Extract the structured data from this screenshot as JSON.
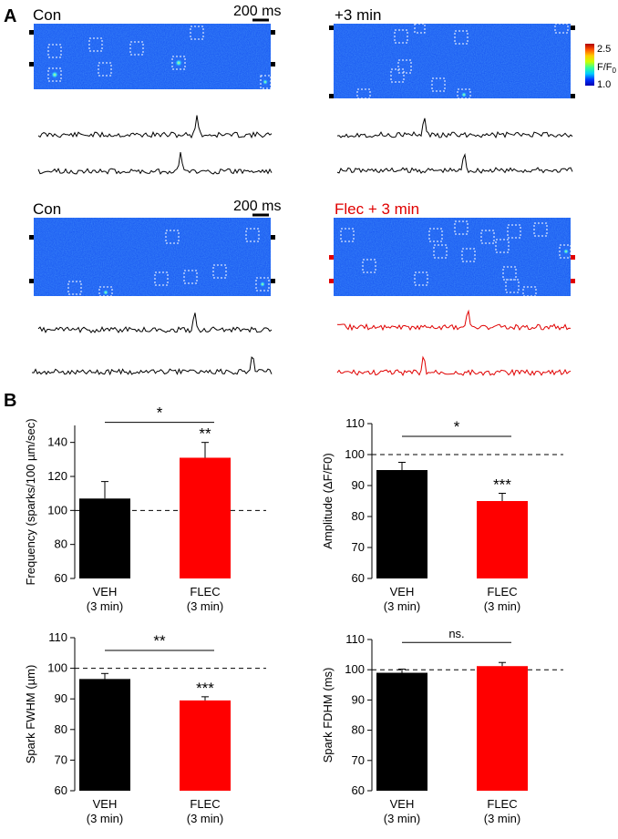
{
  "panel_a": {
    "label": "A",
    "scale_bar": "200 ms",
    "colorbar": {
      "max": "2.5",
      "min": "1.0",
      "unit_main": "F/F",
      "unit_sub": "0",
      "colors": [
        "#0000b0",
        "#0033ff",
        "#00ccff",
        "#33ff99",
        "#ccff00",
        "#ffcc00",
        "#ff5500",
        "#b00000"
      ]
    },
    "images": [
      {
        "title": "Con",
        "title_color": "#000000",
        "trace_color": "#000000"
      },
      {
        "title": "+3 min",
        "title_color": "#000000",
        "trace_color": "#000000"
      },
      {
        "title": "Con",
        "title_color": "#000000",
        "trace_color": "#000000"
      },
      {
        "title": "Flec + 3 min",
        "title_color": "#e00000",
        "trace_color": "#e00000"
      }
    ]
  },
  "panel_b": {
    "label": "B"
  },
  "chart_data": [
    {
      "type": "bar",
      "ylabel": "Frequency (sparks/100 µm/sec)",
      "ylim": [
        60,
        150
      ],
      "yticks": [
        "60",
        "80",
        "100",
        "120",
        "140"
      ],
      "ytick_values": [
        60,
        80,
        100,
        120,
        140
      ],
      "reference_line": 100,
      "categories": [
        {
          "name": "VEH",
          "sub": "(3 min)",
          "value": 107,
          "error": 10,
          "color": "#000000",
          "star": ""
        },
        {
          "name": "FLEC",
          "sub": "(3 min)",
          "value": 131,
          "error": 9,
          "color": "#ff0000",
          "star": "**"
        }
      ],
      "bracket": "*"
    },
    {
      "type": "bar",
      "ylabel": "Amplitude (ΔF/F0)",
      "ylim": [
        60,
        110
      ],
      "yticks": [
        "60",
        "70",
        "80",
        "90",
        "100",
        "110"
      ],
      "ytick_values": [
        60,
        70,
        80,
        90,
        100,
        110
      ],
      "reference_line": 100,
      "categories": [
        {
          "name": "VEH",
          "sub": "(3 min)",
          "value": 95,
          "error": 2.5,
          "color": "#000000",
          "star": ""
        },
        {
          "name": "FLEC",
          "sub": "(3 min)",
          "value": 85,
          "error": 2.5,
          "color": "#ff0000",
          "star": "***"
        }
      ],
      "bracket": "*"
    },
    {
      "type": "bar",
      "ylabel": "Spark FWHM (µm)",
      "ylim": [
        60,
        110
      ],
      "yticks": [
        "60",
        "70",
        "80",
        "90",
        "100",
        "110"
      ],
      "ytick_values": [
        60,
        70,
        80,
        90,
        100,
        110
      ],
      "reference_line": 100,
      "categories": [
        {
          "name": "VEH",
          "sub": "(3 min)",
          "value": 96.5,
          "error": 1.8,
          "color": "#000000",
          "star": ""
        },
        {
          "name": "FLEC",
          "sub": "(3 min)",
          "value": 89.5,
          "error": 1.2,
          "color": "#ff0000",
          "star": "***"
        }
      ],
      "bracket": "**"
    },
    {
      "type": "bar",
      "ylabel": "Spark FDHM (ms)",
      "ylim": [
        60,
        110
      ],
      "yticks": [
        "60",
        "70",
        "80",
        "90",
        "100",
        "110"
      ],
      "ytick_values": [
        60,
        70,
        80,
        90,
        100,
        110
      ],
      "reference_line": 100,
      "categories": [
        {
          "name": "VEH",
          "sub": "(3 min)",
          "value": 99,
          "error": 1.2,
          "color": "#000000",
          "star": ""
        },
        {
          "name": "FLEC",
          "sub": "(3 min)",
          "value": 101.2,
          "error": 1.2,
          "color": "#ff0000",
          "star": ""
        }
      ],
      "bracket": "ns."
    }
  ]
}
